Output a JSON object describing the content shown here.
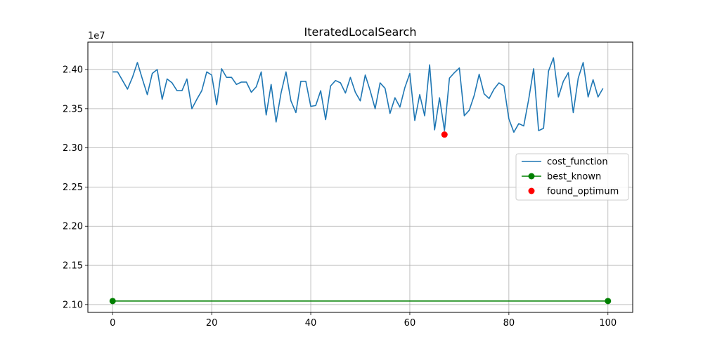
{
  "chart_data": {
    "type": "line",
    "title": "IteratedLocalSearch",
    "xlabel": "",
    "ylabel": "",
    "y_offset_label": "1e7",
    "xlim": [
      -5,
      105
    ],
    "ylim": [
      2.09,
      2.435
    ],
    "x_ticks": [
      0,
      20,
      40,
      60,
      80,
      100
    ],
    "x_tick_labels": [
      "0",
      "20",
      "40",
      "60",
      "80",
      "100"
    ],
    "y_ticks": [
      2.1,
      2.15,
      2.2,
      2.25,
      2.3,
      2.35,
      2.4
    ],
    "y_tick_labels": [
      "2.10",
      "2.15",
      "2.20",
      "2.25",
      "2.30",
      "2.35",
      "2.40"
    ],
    "grid": true,
    "legend_placement": "center-right",
    "series": [
      {
        "name": "cost_function",
        "color": "#1f77b4",
        "style": "line",
        "x": [
          0,
          1,
          2,
          3,
          4,
          5,
          6,
          7,
          8,
          9,
          10,
          11,
          12,
          13,
          14,
          15,
          16,
          17,
          18,
          19,
          20,
          21,
          22,
          23,
          24,
          25,
          26,
          27,
          28,
          29,
          30,
          31,
          32,
          33,
          34,
          35,
          36,
          37,
          38,
          39,
          40,
          41,
          42,
          43,
          44,
          45,
          46,
          47,
          48,
          49,
          50,
          51,
          52,
          53,
          54,
          55,
          56,
          57,
          58,
          59,
          60,
          61,
          62,
          63,
          64,
          65,
          66,
          67,
          68,
          69,
          70,
          71,
          72,
          73,
          74,
          75,
          76,
          77,
          78,
          79,
          80,
          81,
          82,
          83,
          84,
          85,
          86,
          87,
          88,
          89,
          90,
          91,
          92,
          93,
          94,
          95,
          96,
          97,
          98,
          99
        ],
        "values": [
          2.397,
          2.397,
          2.386,
          2.375,
          2.39,
          2.409,
          2.388,
          2.368,
          2.395,
          2.4,
          2.362,
          2.388,
          2.383,
          2.373,
          2.373,
          2.388,
          2.35,
          2.362,
          2.373,
          2.397,
          2.393,
          2.355,
          2.401,
          2.39,
          2.39,
          2.381,
          2.384,
          2.384,
          2.371,
          2.378,
          2.397,
          2.342,
          2.381,
          2.333,
          2.37,
          2.397,
          2.36,
          2.345,
          2.385,
          2.385,
          2.353,
          2.354,
          2.373,
          2.336,
          2.379,
          2.386,
          2.383,
          2.37,
          2.39,
          2.371,
          2.36,
          2.393,
          2.373,
          2.35,
          2.383,
          2.376,
          2.344,
          2.364,
          2.352,
          2.377,
          2.395,
          2.335,
          2.368,
          2.341,
          2.406,
          2.323,
          2.364,
          2.322,
          2.389,
          2.396,
          2.402,
          2.341,
          2.348,
          2.367,
          2.394,
          2.369,
          2.363,
          2.375,
          2.383,
          2.379,
          2.337,
          2.32,
          2.331,
          2.328,
          2.362,
          2.401,
          2.322,
          2.325,
          2.398,
          2.415,
          2.365,
          2.385,
          2.396,
          2.345,
          2.389,
          2.409,
          2.365,
          2.387,
          2.365,
          2.376
        ]
      },
      {
        "name": "best_known",
        "color": "#008000",
        "style": "line-marker",
        "x": [
          0,
          100
        ],
        "values": [
          2.1045,
          2.1045
        ]
      },
      {
        "name": "found_optimum",
        "color": "#ff0000",
        "style": "marker",
        "x": [
          67
        ],
        "values": [
          2.317
        ]
      }
    ]
  }
}
